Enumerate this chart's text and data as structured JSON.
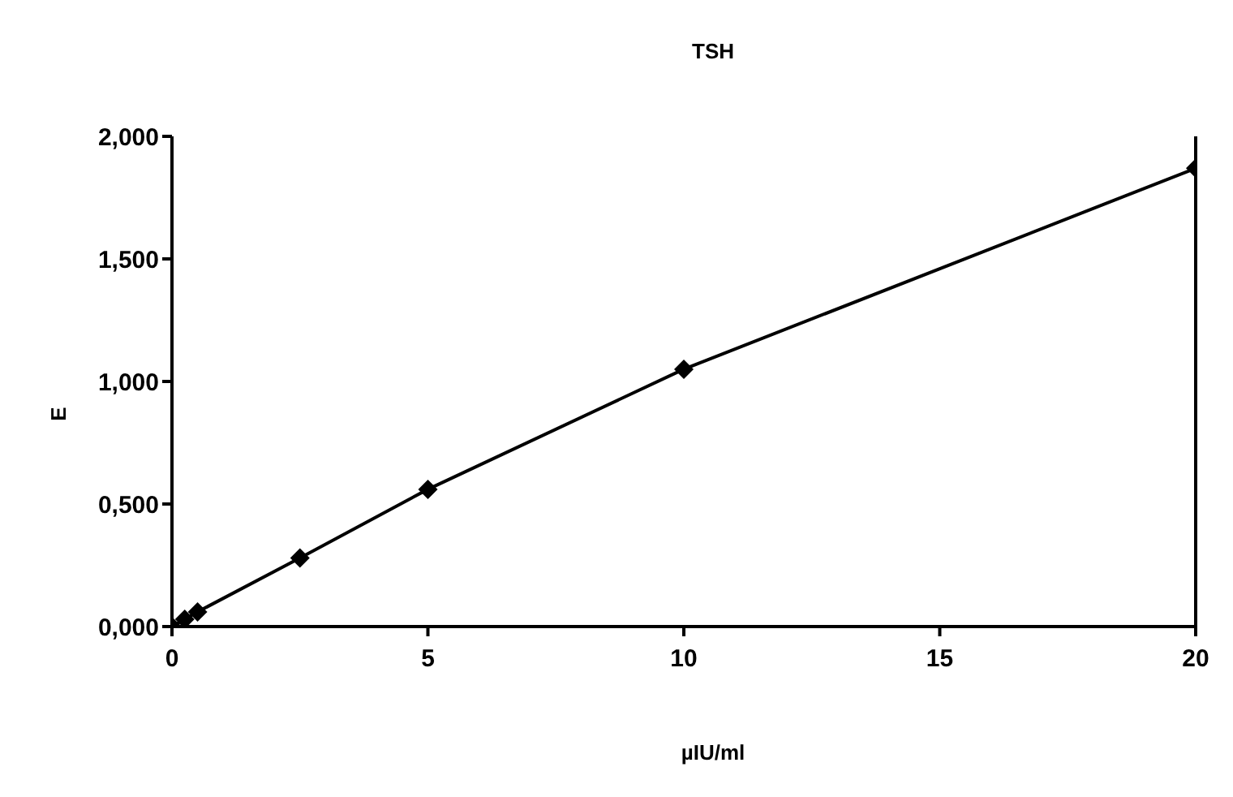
{
  "chart_data": {
    "type": "line",
    "title": "TSH",
    "xlabel": "µIU/ml",
    "ylabel": "E",
    "x": [
      0,
      0.25,
      0.5,
      2.5,
      5,
      10,
      20
    ],
    "series": [
      {
        "color": "#000000",
        "values": [
          0,
          0.03,
          0.06,
          0.28,
          0.56,
          1.05,
          1.87
        ]
      }
    ],
    "xlim": [
      0,
      20
    ],
    "xticks": [
      0,
      5,
      10,
      15,
      20
    ],
    "ylim": [
      0,
      2
    ],
    "yticks": [
      {
        "value": 0,
        "label": "0,000"
      },
      {
        "value": 0.5,
        "label": "0,500"
      },
      {
        "value": 1,
        "label": "1,000"
      },
      {
        "value": 1.5,
        "label": "1,500"
      },
      {
        "value": 2,
        "label": "2,000"
      }
    ],
    "grid": false,
    "legend": false,
    "marker": "diamond",
    "line_style": "solid"
  }
}
